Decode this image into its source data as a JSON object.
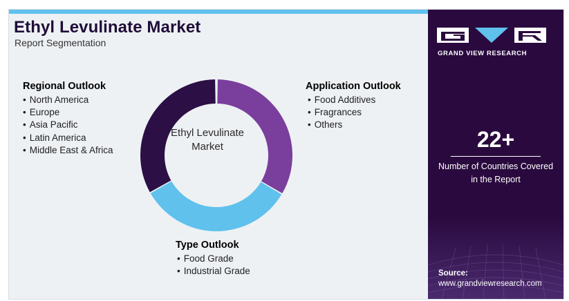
{
  "header": {
    "title": "Ethyl Levulinate Market",
    "subtitle": "Report Segmentation"
  },
  "center_label": "Ethyl Levulinate Market",
  "segments": {
    "regional": {
      "heading": "Regional Outlook",
      "color": "#2b0f45",
      "items": [
        "North America",
        "Europe",
        "Asia Pacific",
        "Latin America",
        "Middle East & Africa"
      ]
    },
    "application": {
      "heading": "Application Outlook",
      "color": "#7a3e9d",
      "items": [
        "Food Additives",
        "Fragrances",
        "Others"
      ]
    },
    "type": {
      "heading": "Type Outlook",
      "color": "#5fc1ec",
      "items": [
        "Food Grade",
        "Industrial Grade"
      ]
    }
  },
  "brand": {
    "logo_text": "GRAND VIEW RESEARCH",
    "stat_value": "22+",
    "stat_caption": "Number of Countries Covered in the Report",
    "source_label": "Source:",
    "source_url": "www.grandviewresearch.com",
    "panel_color": "#2a0a3e"
  }
}
